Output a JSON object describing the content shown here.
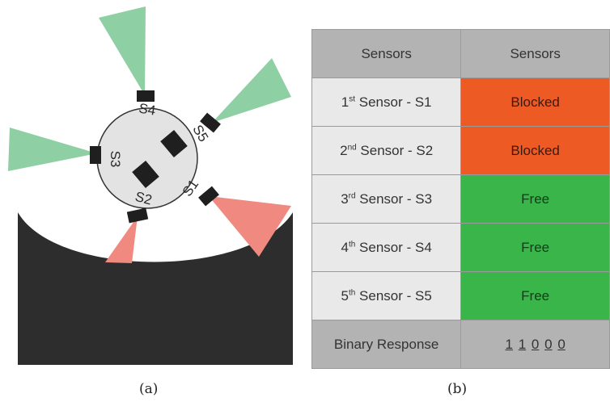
{
  "figure_a": {
    "caption": "(a)",
    "sensor_labels": [
      "S1",
      "S2",
      "S3",
      "S4",
      "S5"
    ],
    "colors": {
      "free_beam": "#8ecfa3",
      "blocked_beam": "#f08a80",
      "obstacle": "#2d2d2d",
      "robot_body": "#e3e3e3",
      "sensor": "#1f1f1f"
    }
  },
  "figure_b": {
    "caption": "(b)",
    "table": {
      "headers": [
        "Sensors",
        "Sensors"
      ],
      "rows": [
        {
          "ordinal": "1",
          "suffix": "st",
          "label": " Sensor - S1",
          "status": "Blocked",
          "state": "blocked"
        },
        {
          "ordinal": "2",
          "suffix": "nd",
          "label": " Sensor - S2",
          "status": "Blocked",
          "state": "blocked"
        },
        {
          "ordinal": "3",
          "suffix": "rd",
          "label": " Sensor - S3",
          "status": "Free",
          "state": "free"
        },
        {
          "ordinal": "4",
          "suffix": "th",
          "label": " Sensor - S4",
          "status": "Free",
          "state": "free"
        },
        {
          "ordinal": "5",
          "suffix": "th",
          "label": " Sensor - S5",
          "status": "Free",
          "state": "free"
        }
      ],
      "footer_label": "Binary Response",
      "binary_response": [
        "1",
        "1",
        "0",
        "0",
        "0"
      ]
    },
    "colors": {
      "blocked": "#ee5a24",
      "free": "#39b54a",
      "header": "#b3b3b3",
      "label_cell": "#e9e9e9"
    }
  }
}
